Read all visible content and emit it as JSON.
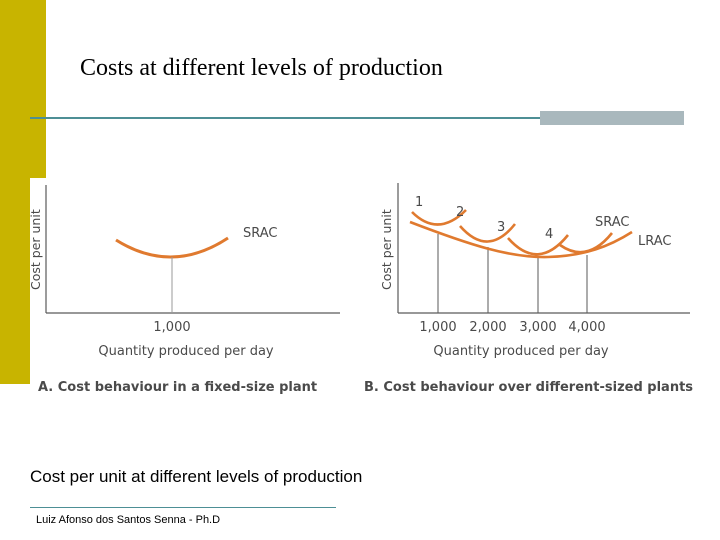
{
  "slide": {
    "title": "Costs at different levels of production",
    "caption": "Cost per unit at different levels of production",
    "footer": "Luiz Afonso dos Santos Senna - Ph.D",
    "colors": {
      "accent_bar": "#c8b400",
      "rule": "#4d8f95",
      "curve": "#e07a2f",
      "text": "#4a4a4a"
    }
  },
  "panel_a": {
    "ylabel": "Cost per unit",
    "curve_label": "SRAC",
    "tick": "1,000",
    "xlabel": "Quantity produced per day",
    "caption": "A.  Cost behaviour in a fixed-size plant"
  },
  "panel_b": {
    "ylabel": "Cost per unit",
    "plant_labels": [
      "1",
      "2",
      "3",
      "4"
    ],
    "srac_label": "SRAC",
    "lrac_label": "LRAC",
    "ticks": [
      "1,000",
      "2,000",
      "3,000",
      "4,000"
    ],
    "xlabel": "Quantity produced per day",
    "caption": "B.  Cost behaviour over different-sized plants"
  }
}
